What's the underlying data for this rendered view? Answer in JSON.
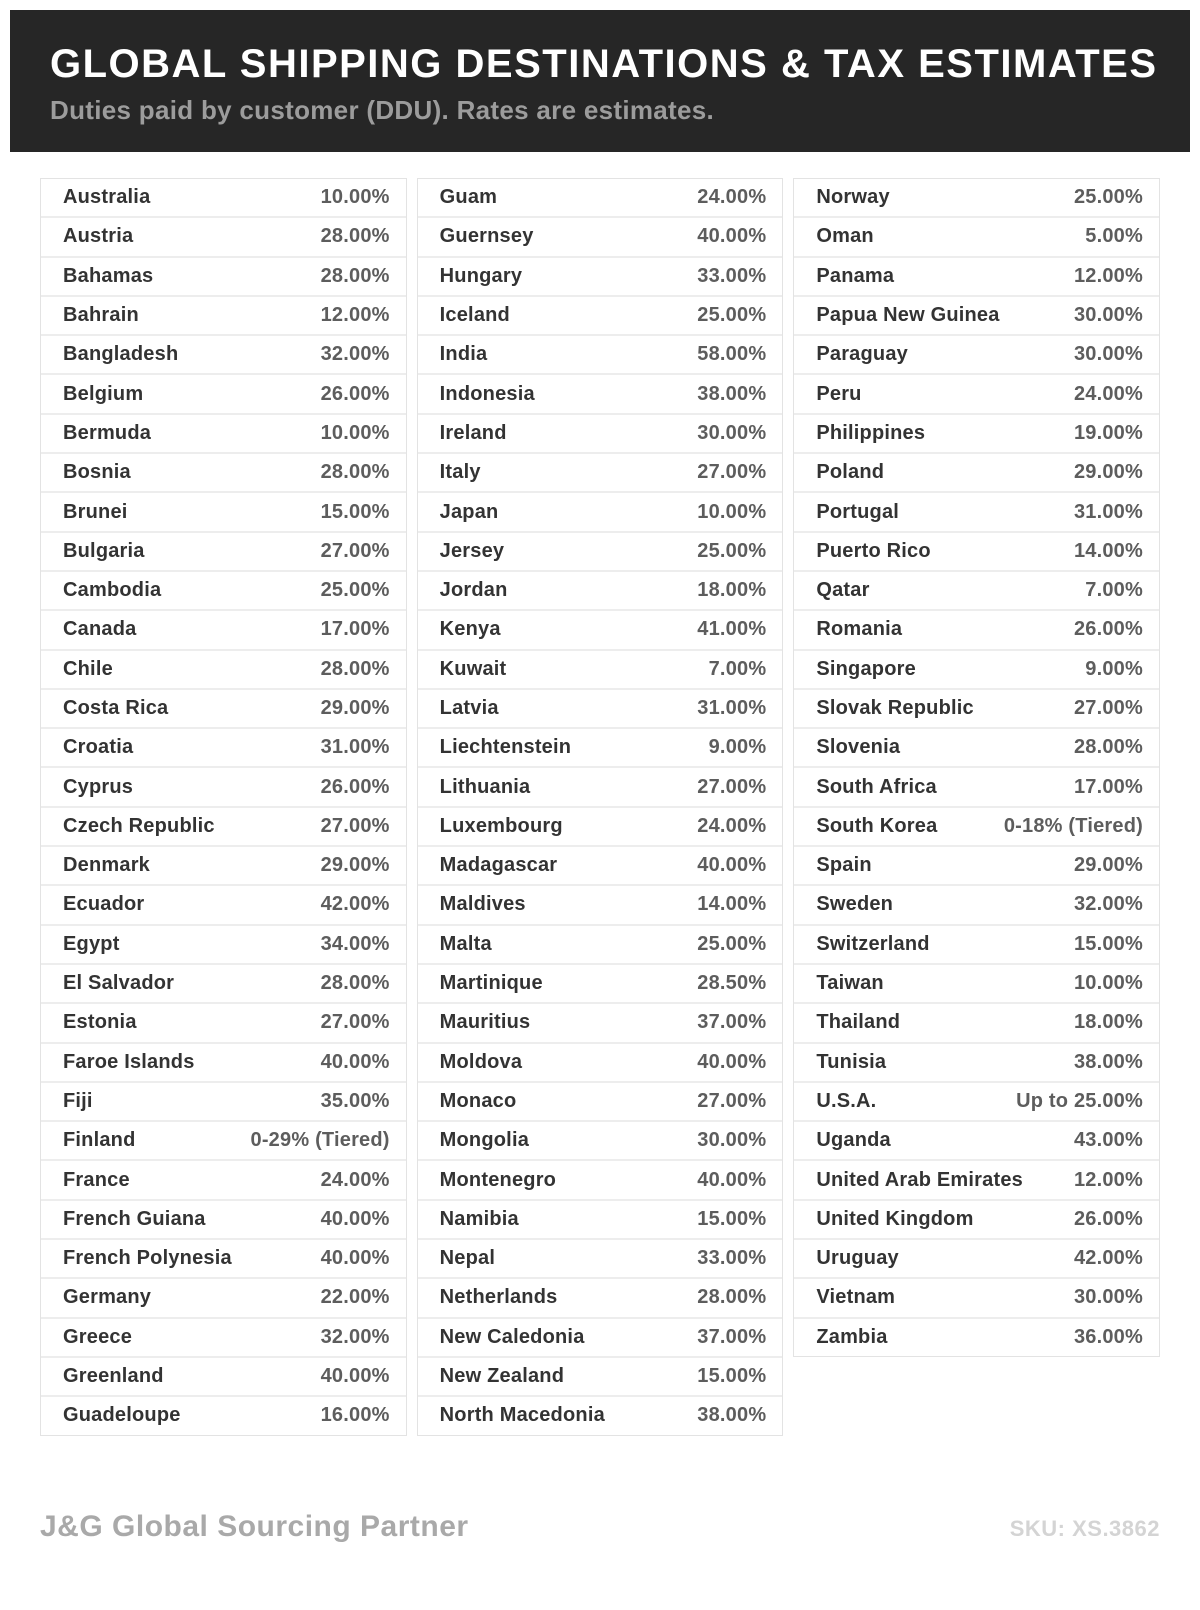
{
  "header": {
    "title": "GLOBAL SHIPPING DESTINATIONS & TAX ESTIMATES",
    "subtitle": "Duties paid by customer (DDU). Rates are estimates."
  },
  "columns": [
    [
      {
        "country": "Australia",
        "rate": "10.00%"
      },
      {
        "country": "Austria",
        "rate": "28.00%"
      },
      {
        "country": "Bahamas",
        "rate": "28.00%"
      },
      {
        "country": "Bahrain",
        "rate": "12.00%"
      },
      {
        "country": "Bangladesh",
        "rate": "32.00%"
      },
      {
        "country": "Belgium",
        "rate": "26.00%"
      },
      {
        "country": "Bermuda",
        "rate": "10.00%"
      },
      {
        "country": "Bosnia",
        "rate": "28.00%"
      },
      {
        "country": "Brunei",
        "rate": "15.00%"
      },
      {
        "country": "Bulgaria",
        "rate": "27.00%"
      },
      {
        "country": "Cambodia",
        "rate": "25.00%"
      },
      {
        "country": "Canada",
        "rate": "17.00%"
      },
      {
        "country": "Chile",
        "rate": "28.00%"
      },
      {
        "country": "Costa Rica",
        "rate": "29.00%"
      },
      {
        "country": "Croatia",
        "rate": "31.00%"
      },
      {
        "country": "Cyprus",
        "rate": "26.00%"
      },
      {
        "country": "Czech Republic",
        "rate": "27.00%"
      },
      {
        "country": "Denmark",
        "rate": "29.00%"
      },
      {
        "country": "Ecuador",
        "rate": "42.00%"
      },
      {
        "country": "Egypt",
        "rate": "34.00%"
      },
      {
        "country": "El Salvador",
        "rate": "28.00%"
      },
      {
        "country": "Estonia",
        "rate": "27.00%"
      },
      {
        "country": "Faroe Islands",
        "rate": "40.00%"
      },
      {
        "country": "Fiji",
        "rate": "35.00%"
      },
      {
        "country": "Finland",
        "rate": "0-29% (Tiered)"
      },
      {
        "country": "France",
        "rate": "24.00%"
      },
      {
        "country": "French Guiana",
        "rate": "40.00%"
      },
      {
        "country": "French Polynesia",
        "rate": "40.00%"
      },
      {
        "country": "Germany",
        "rate": "22.00%"
      },
      {
        "country": "Greece",
        "rate": "32.00%"
      },
      {
        "country": "Greenland",
        "rate": "40.00%"
      },
      {
        "country": "Guadeloupe",
        "rate": "16.00%"
      }
    ],
    [
      {
        "country": "Guam",
        "rate": "24.00%"
      },
      {
        "country": "Guernsey",
        "rate": "40.00%"
      },
      {
        "country": "Hungary",
        "rate": "33.00%"
      },
      {
        "country": "Iceland",
        "rate": "25.00%"
      },
      {
        "country": "India",
        "rate": "58.00%"
      },
      {
        "country": "Indonesia",
        "rate": "38.00%"
      },
      {
        "country": "Ireland",
        "rate": "30.00%"
      },
      {
        "country": "Italy",
        "rate": "27.00%"
      },
      {
        "country": "Japan",
        "rate": "10.00%"
      },
      {
        "country": "Jersey",
        "rate": "25.00%"
      },
      {
        "country": "Jordan",
        "rate": "18.00%"
      },
      {
        "country": "Kenya",
        "rate": "41.00%"
      },
      {
        "country": "Kuwait",
        "rate": "7.00%"
      },
      {
        "country": "Latvia",
        "rate": "31.00%"
      },
      {
        "country": "Liechtenstein",
        "rate": "9.00%"
      },
      {
        "country": "Lithuania",
        "rate": "27.00%"
      },
      {
        "country": "Luxembourg",
        "rate": "24.00%"
      },
      {
        "country": "Madagascar",
        "rate": "40.00%"
      },
      {
        "country": "Maldives",
        "rate": "14.00%"
      },
      {
        "country": "Malta",
        "rate": "25.00%"
      },
      {
        "country": "Martinique",
        "rate": "28.50%"
      },
      {
        "country": "Mauritius",
        "rate": "37.00%"
      },
      {
        "country": "Moldova",
        "rate": "40.00%"
      },
      {
        "country": "Monaco",
        "rate": "27.00%"
      },
      {
        "country": "Mongolia",
        "rate": "30.00%"
      },
      {
        "country": "Montenegro",
        "rate": "40.00%"
      },
      {
        "country": "Namibia",
        "rate": "15.00%"
      },
      {
        "country": "Nepal",
        "rate": "33.00%"
      },
      {
        "country": "Netherlands",
        "rate": "28.00%"
      },
      {
        "country": "New Caledonia",
        "rate": "37.00%"
      },
      {
        "country": "New Zealand",
        "rate": "15.00%"
      },
      {
        "country": "North Macedonia",
        "rate": "38.00%"
      }
    ],
    [
      {
        "country": "Norway",
        "rate": "25.00%"
      },
      {
        "country": "Oman",
        "rate": "5.00%"
      },
      {
        "country": "Panama",
        "rate": "12.00%"
      },
      {
        "country": "Papua New Guinea",
        "rate": "30.00%"
      },
      {
        "country": "Paraguay",
        "rate": "30.00%"
      },
      {
        "country": "Peru",
        "rate": "24.00%"
      },
      {
        "country": "Philippines",
        "rate": "19.00%"
      },
      {
        "country": "Poland",
        "rate": "29.00%"
      },
      {
        "country": "Portugal",
        "rate": "31.00%"
      },
      {
        "country": "Puerto Rico",
        "rate": "14.00%"
      },
      {
        "country": "Qatar",
        "rate": "7.00%"
      },
      {
        "country": "Romania",
        "rate": "26.00%"
      },
      {
        "country": "Singapore",
        "rate": "9.00%"
      },
      {
        "country": "Slovak Republic",
        "rate": "27.00%"
      },
      {
        "country": "Slovenia",
        "rate": "28.00%"
      },
      {
        "country": "South Africa",
        "rate": "17.00%"
      },
      {
        "country": "South Korea",
        "rate": "0-18% (Tiered)"
      },
      {
        "country": "Spain",
        "rate": "29.00%"
      },
      {
        "country": "Sweden",
        "rate": "32.00%"
      },
      {
        "country": "Switzerland",
        "rate": "15.00%"
      },
      {
        "country": "Taiwan",
        "rate": "10.00%"
      },
      {
        "country": "Thailand",
        "rate": "18.00%"
      },
      {
        "country": "Tunisia",
        "rate": "38.00%"
      },
      {
        "country": "U.S.A.",
        "rate": "Up to 25.00%"
      },
      {
        "country": "Uganda",
        "rate": "43.00%"
      },
      {
        "country": "United Arab Emirates",
        "rate": "12.00%"
      },
      {
        "country": "United Kingdom",
        "rate": "26.00%"
      },
      {
        "country": "Uruguay",
        "rate": "42.00%"
      },
      {
        "country": "Vietnam",
        "rate": "30.00%"
      },
      {
        "country": "Zambia",
        "rate": "36.00%"
      }
    ]
  ],
  "footer": {
    "brand": "J&G Global Sourcing Partner",
    "sku": "SKU: XS.3862"
  },
  "colors": {
    "header_bg": "#262626",
    "title_text": "#ffffff",
    "subtitle_text": "#9c9c9c",
    "country_text": "#333333",
    "rate_text": "#5d5d5d",
    "row_divider": "#ededed",
    "column_border": "#e3e3e3",
    "brand_text": "#a9a9a9",
    "sku_text": "#d4d4d4"
  }
}
